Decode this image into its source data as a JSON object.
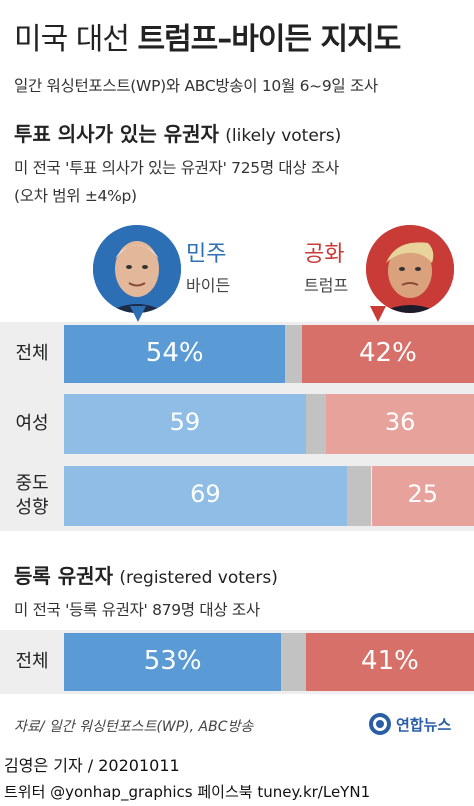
{
  "header": {
    "title_plain": "미국 대선 ",
    "title_strong": "트럼프–바이든 지지도",
    "subtitle": "일간 워싱턴포스트(WP)와 ABC방송이 10월 6~9일 조사"
  },
  "legend": {
    "left_party": "민주",
    "left_candidate": "바이든",
    "right_party": "공화",
    "right_candidate": "트럼프"
  },
  "section1": {
    "title_ko": "투표 의사가 있는 유권자",
    "title_en": "(likely voters)",
    "note1": "미 전국 '투표 의사가 있는 유권자' 725명 대상 조사",
    "note2": "(오차 범위 ±4%p)"
  },
  "section2": {
    "title_ko": "등록 유권자",
    "title_en": "(registered voters)",
    "note1": "미 전국 '등록 유권자' 879명 대상 조사"
  },
  "footer": {
    "source": "자료/ 일간 워싱턴포스트(WP), ABC방송",
    "logo": "연합뉴스",
    "reporter": "김영은 기자 / 20201011",
    "social": "트위터 @yonhap_graphics  페이스북 tuney.kr/LeYN1"
  },
  "colors": {
    "biden": "#5b9bd5",
    "trump": "#d8706a",
    "biden_light": "#8fbde6",
    "trump_light": "#e6a29b",
    "undecided": "#c2c2c2"
  },
  "chart_data": {
    "type": "bar",
    "stacked": true,
    "orientation": "horizontal",
    "series": [
      {
        "name": "바이든",
        "values": [
          54,
          59,
          69,
          53
        ]
      },
      {
        "name": "트럼프",
        "values": [
          42,
          36,
          25,
          41
        ]
      }
    ],
    "categories": [
      "전체",
      "여성",
      "중도\n성향",
      "전체"
    ],
    "category_labels": [
      {
        "line1": "전체",
        "line2": ""
      },
      {
        "line1": "여성",
        "line2": ""
      },
      {
        "line1": "중도",
        "line2": "성향"
      },
      {
        "line1": "전체",
        "line2": ""
      }
    ],
    "value_labels": [
      {
        "left": "54%",
        "right": "42%"
      },
      {
        "left": "59",
        "right": "36"
      },
      {
        "left": "69",
        "right": "25"
      },
      {
        "left": "53%",
        "right": "41%"
      }
    ],
    "groups": [
      "투표 의사가 있는 유권자",
      "투표 의사가 있는 유권자",
      "투표 의사가 있는 유권자",
      "등록 유권자"
    ],
    "xlim": [
      0,
      100
    ]
  }
}
